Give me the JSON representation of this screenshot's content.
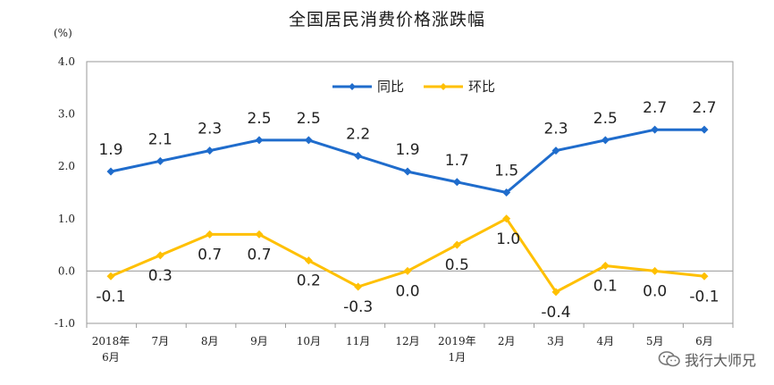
{
  "chart_data": {
    "type": "line",
    "title": "全国居民消费价格涨跌幅",
    "unit_label": "(%)",
    "categories": [
      [
        "2018年",
        "6月"
      ],
      [
        "7月"
      ],
      [
        "8月"
      ],
      [
        "9月"
      ],
      [
        "10月"
      ],
      [
        "11月"
      ],
      [
        "12月"
      ],
      [
        "2019年",
        "1月"
      ],
      [
        "2月"
      ],
      [
        "3月"
      ],
      [
        "4月"
      ],
      [
        "5月"
      ],
      [
        "6月"
      ]
    ],
    "series": [
      {
        "name": "同比",
        "color": "#1f6ccc",
        "values": [
          1.9,
          2.1,
          2.3,
          2.5,
          2.5,
          2.2,
          1.9,
          1.7,
          1.5,
          2.3,
          2.5,
          2.7,
          2.7
        ],
        "labels": [
          "1.9",
          "2.1",
          "2.3",
          "2.5",
          "2.5",
          "2.2",
          "1.9",
          "1.7",
          "1.5",
          "2.3",
          "2.5",
          "2.7",
          "2.7"
        ]
      },
      {
        "name": "环比",
        "color": "#ffc000",
        "values": [
          -0.1,
          0.3,
          0.7,
          0.7,
          0.2,
          -0.3,
          0.0,
          0.5,
          1.0,
          -0.4,
          0.1,
          0.0,
          -0.1
        ],
        "labels": [
          "-0.1",
          "0.3",
          "0.7",
          "0.7",
          "0.2",
          "-0.3",
          "0.0",
          "0.5",
          "1.0",
          "-0.4",
          "0.1",
          "0.0",
          "-0.1"
        ]
      }
    ],
    "ylim": [
      -1.0,
      4.0
    ],
    "yticks": [
      "-1.0",
      "0.0",
      "1.0",
      "2.0",
      "3.0",
      "4.0"
    ],
    "legend_position": "top-center",
    "grid": false
  },
  "watermark": {
    "text": "我行大师兄",
    "icon": "wechat-icon"
  }
}
